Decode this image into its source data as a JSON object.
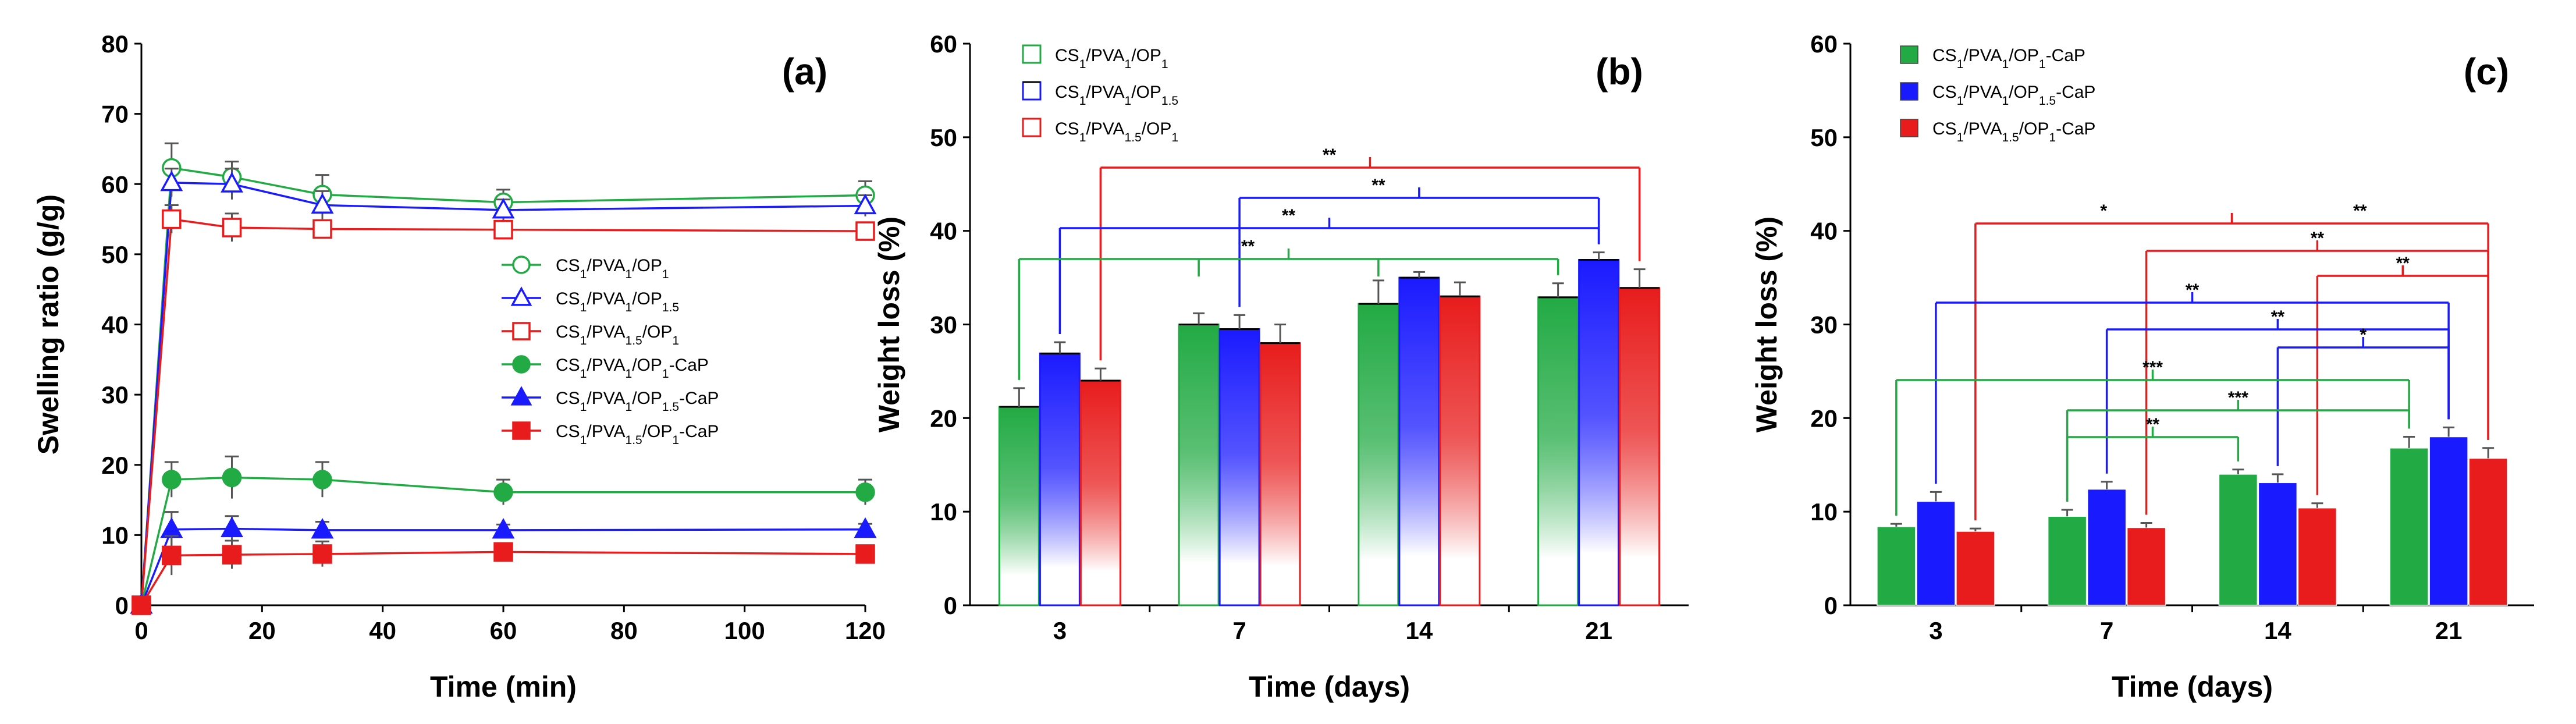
{
  "chart_data": [
    {
      "panel": "(a)",
      "type": "line",
      "xlabel": "Time (min)",
      "ylabel": "Swelling ratio (g/g)",
      "xlim": [
        0,
        120
      ],
      "ylim": [
        0,
        80
      ],
      "xticks": [
        "0",
        "20",
        "40",
        "60",
        "80",
        "100",
        "120"
      ],
      "yticks": [
        "0",
        "10",
        "20",
        "30",
        "40",
        "50",
        "60",
        "70",
        "80"
      ],
      "legend_position": "center-right",
      "x": [
        0,
        5,
        15,
        30,
        60,
        120
      ],
      "series": [
        {
          "name": "CS1/PVA1/OP1",
          "base": "CS",
          "sub1": "1",
          "mid1": "/PVA",
          "sub2": "1",
          "mid2": "/OP",
          "sub3": "1",
          "suffix": "",
          "color": "#22aa44",
          "marker": "circle",
          "filled": false,
          "values": [
            0,
            62.3,
            61.0,
            58.5,
            57.4,
            58.4
          ],
          "errors": [
            0,
            3.5,
            2.2,
            2.8,
            1.8,
            2.0
          ]
        },
        {
          "name": "CS1/PVA1/OP1.5",
          "base": "CS",
          "sub1": "1",
          "mid1": "/PVA",
          "sub2": "1",
          "mid2": "/OP",
          "sub3": "1.5",
          "suffix": "",
          "color": "#1a1aff",
          "marker": "triangle",
          "filled": false,
          "values": [
            0,
            60.2,
            60.0,
            57.0,
            56.3,
            56.9
          ],
          "errors": [
            0,
            2.0,
            2.2,
            2.0,
            1.5,
            1.5
          ]
        },
        {
          "name": "CS1/PVA1.5/OP1",
          "base": "CS",
          "sub1": "1",
          "mid1": "/PVA",
          "sub2": "1.5",
          "mid2": "/OP",
          "sub3": "1",
          "suffix": "",
          "color": "#e81c1c",
          "marker": "square",
          "filled": false,
          "values": [
            0,
            55.0,
            53.8,
            53.6,
            53.5,
            53.3
          ],
          "errors": [
            0,
            2.0,
            2.0,
            1.0,
            1.0,
            0.8
          ]
        },
        {
          "name": "CS1/PVA1/OP1-CaP",
          "base": "CS",
          "sub1": "1",
          "mid1": "/PVA",
          "sub2": "1",
          "mid2": "/OP",
          "sub3": "1",
          "suffix": "-CaP",
          "color": "#22aa44",
          "marker": "circle",
          "filled": true,
          "values": [
            0,
            17.9,
            18.2,
            17.9,
            16.1,
            16.1
          ],
          "errors": [
            0,
            2.5,
            3.0,
            2.5,
            1.8,
            1.8
          ]
        },
        {
          "name": "CS1/PVA1/OP1.5-CaP",
          "base": "CS",
          "sub1": "1",
          "mid1": "/PVA",
          "sub2": "1",
          "mid2": "/OP",
          "sub3": "1.5",
          "suffix": "-CaP",
          "color": "#1a1aff",
          "marker": "triangle",
          "filled": true,
          "values": [
            0,
            10.8,
            10.9,
            10.7,
            10.7,
            10.8
          ],
          "errors": [
            0,
            2.5,
            1.8,
            1.2,
            0.8,
            0.8
          ]
        },
        {
          "name": "CS1/PVA1.5/OP1-CaP",
          "base": "CS",
          "sub1": "1",
          "mid1": "/PVA",
          "sub2": "1.5",
          "mid2": "/OP",
          "sub3": "1",
          "suffix": "-CaP",
          "color": "#e81c1c",
          "marker": "square",
          "filled": true,
          "values": [
            0,
            7.1,
            7.2,
            7.3,
            7.6,
            7.3
          ],
          "errors": [
            0,
            2.8,
            2.0,
            1.8,
            0.8,
            0.8
          ]
        }
      ]
    },
    {
      "panel": "(b)",
      "type": "bar",
      "xlabel": "Time (days)",
      "ylabel": "Weight loss (%)",
      "ylim": [
        0,
        60
      ],
      "yticks": [
        "0",
        "10",
        "20",
        "30",
        "40",
        "50",
        "60"
      ],
      "categories": [
        "3",
        "7",
        "14",
        "21"
      ],
      "legend_position": "top-left",
      "series": [
        {
          "name": "CS1/PVA1/OP1",
          "base": "CS",
          "sub1": "1",
          "mid1": "/PVA",
          "sub2": "1",
          "mid2": "/OP",
          "sub3": "1",
          "suffix": "",
          "color": "#22aa44",
          "values": [
            21.2,
            30.0,
            32.2,
            32.9
          ],
          "errors": [
            2.0,
            1.2,
            2.5,
            1.5
          ]
        },
        {
          "name": "CS1/PVA1/OP1.5",
          "base": "CS",
          "sub1": "1",
          "mid1": "/PVA",
          "sub2": "1",
          "mid2": "/OP",
          "sub3": "1.5",
          "suffix": "",
          "color": "#1a1aff",
          "values": [
            26.9,
            29.5,
            35.0,
            36.9
          ],
          "errors": [
            1.2,
            1.5,
            0.6,
            0.8
          ]
        },
        {
          "name": "CS1/PVA1.5/OP1",
          "base": "CS",
          "sub1": "1",
          "mid1": "/PVA",
          "sub2": "1.5",
          "mid2": "/OP",
          "sub3": "1",
          "suffix": "",
          "color": "#e81c1c",
          "values": [
            24.0,
            28.0,
            33.0,
            33.9
          ],
          "errors": [
            1.3,
            2.0,
            1.5,
            2.0
          ]
        }
      ],
      "significance": [
        {
          "color": "#e81c1c",
          "label": "**",
          "from": [
            2,
            0
          ],
          "to": [
            2,
            3
          ]
        },
        {
          "color": "#1a1aff",
          "label": "**",
          "from": [
            1,
            1
          ],
          "to": [
            1,
            3
          ]
        },
        {
          "color": "#1a1aff",
          "label": "**",
          "from": [
            1,
            0
          ],
          "to": [
            1,
            3
          ]
        },
        {
          "color": "#22aa44",
          "label": "**",
          "from": [
            0,
            0
          ],
          "to": [
            0,
            3
          ],
          "drops": [
            [
              0,
              1
            ],
            [
              0,
              2
            ]
          ]
        }
      ]
    },
    {
      "panel": "(c)",
      "type": "bar",
      "xlabel": "Time (days)",
      "ylabel": "Weight loss (%)",
      "ylim": [
        0,
        60
      ],
      "yticks": [
        "0",
        "10",
        "20",
        "30",
        "40",
        "50",
        "60"
      ],
      "categories": [
        "3",
        "7",
        "14",
        "21"
      ],
      "legend_position": "top-left",
      "series": [
        {
          "name": "CS1/PVA1/OP1-CaP",
          "base": "CS",
          "sub1": "1",
          "mid1": "/PVA",
          "sub2": "1",
          "mid2": "/OP",
          "sub3": "1",
          "suffix": "-CaP",
          "color": "#22aa44",
          "values": [
            8.4,
            9.5,
            14.0,
            16.8
          ],
          "errors": [
            0.3,
            0.7,
            0.5,
            1.2
          ]
        },
        {
          "name": "CS1/PVA1/OP1.5-CaP",
          "base": "CS",
          "sub1": "1",
          "mid1": "/PVA",
          "sub2": "1",
          "mid2": "/OP",
          "sub3": "1.5",
          "suffix": "-CaP",
          "color": "#1a1aff",
          "values": [
            11.1,
            12.4,
            13.1,
            18.0
          ],
          "errors": [
            1.0,
            0.8,
            0.9,
            1.0
          ]
        },
        {
          "name": "CS1/PVA1.5/OP1-CaP",
          "base": "CS",
          "sub1": "1",
          "mid1": "/PVA",
          "sub2": "1.5",
          "mid2": "/OP",
          "sub3": "1",
          "suffix": "-CaP",
          "color": "#e81c1c",
          "values": [
            7.9,
            8.3,
            10.4,
            15.7
          ],
          "errors": [
            0.3,
            0.5,
            0.5,
            1.1
          ]
        }
      ],
      "significance": [
        {
          "color": "#e81c1c",
          "label": "*",
          "label2": "**",
          "from": [
            2,
            0
          ],
          "to": [
            2,
            3
          ]
        },
        {
          "color": "#e81c1c",
          "label": "**",
          "from": [
            2,
            1
          ],
          "to": [
            2,
            3
          ]
        },
        {
          "color": "#e81c1c",
          "label": "**",
          "from": [
            2,
            2
          ],
          "to": [
            2,
            3
          ]
        },
        {
          "color": "#1a1aff",
          "label": "**",
          "from": [
            1,
            0
          ],
          "to": [
            1,
            3
          ]
        },
        {
          "color": "#1a1aff",
          "label": "**",
          "from": [
            1,
            1
          ],
          "to": [
            1,
            3
          ]
        },
        {
          "color": "#1a1aff",
          "label": "*",
          "from": [
            1,
            2
          ],
          "to": [
            1,
            3
          ]
        },
        {
          "color": "#22aa44",
          "label": "***",
          "from": [
            0,
            0
          ],
          "to": [
            0,
            3
          ]
        },
        {
          "color": "#22aa44",
          "label": "***",
          "from": [
            0,
            1
          ],
          "to": [
            0,
            3
          ]
        },
        {
          "color": "#22aa44",
          "label": "**",
          "from": [
            0,
            1
          ],
          "to": [
            0,
            2
          ]
        }
      ]
    }
  ]
}
